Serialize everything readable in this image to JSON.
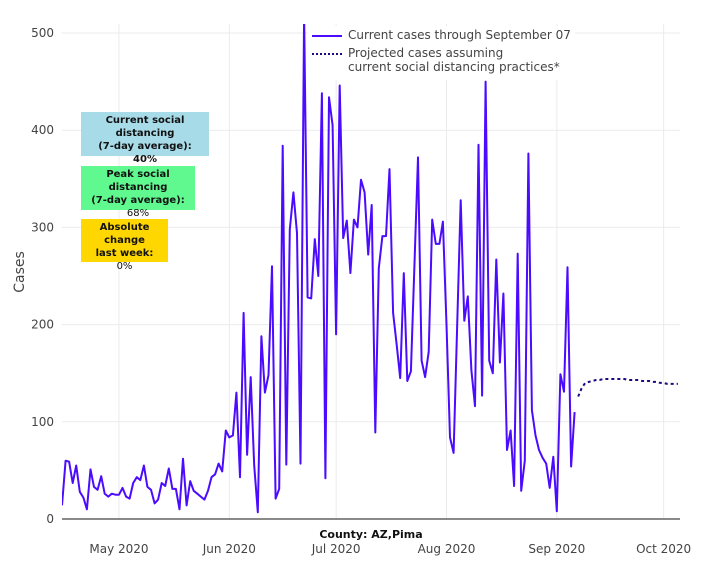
{
  "chart_data": {
    "type": "line",
    "title": "",
    "xlabel": "County: AZ,Pima",
    "ylabel": "Cases",
    "ylim": [
      0,
      505
    ],
    "xlim": [
      "2020-04-15",
      "2020-10-05"
    ],
    "yticks": [
      0,
      100,
      200,
      300,
      400,
      500
    ],
    "xticks": [
      {
        "date": "2020-05-01",
        "label": "May 2020"
      },
      {
        "date": "2020-06-01",
        "label": "Jun 2020"
      },
      {
        "date": "2020-07-01",
        "label": "Jul 2020"
      },
      {
        "date": "2020-08-01",
        "label": "Aug 2020"
      },
      {
        "date": "2020-09-01",
        "label": "Sep 2020"
      },
      {
        "date": "2020-10-01",
        "label": "Oct 2020"
      }
    ],
    "grid": true,
    "legend_position": "top-center",
    "series": [
      {
        "name": "Current cases through September 07",
        "style": "solid",
        "color": "#4b0bff",
        "start_date": "2020-04-15",
        "values": [
          14,
          60,
          59,
          37,
          55,
          28,
          22,
          10,
          51,
          33,
          30,
          44,
          26,
          23,
          26,
          25,
          25,
          32,
          23,
          21,
          37,
          43,
          40,
          55,
          33,
          30,
          16,
          20,
          37,
          34,
          52,
          31,
          31,
          10,
          62,
          14,
          39,
          29,
          26,
          23,
          20,
          29,
          43,
          46,
          57,
          49,
          91,
          84,
          86,
          130,
          43,
          212,
          66,
          146,
          55,
          7,
          188,
          130,
          148,
          260,
          21,
          31,
          384,
          56,
          298,
          336,
          294,
          57,
          520,
          228,
          227,
          288,
          250,
          438,
          42,
          434,
          405,
          190,
          446,
          289,
          307,
          253,
          308,
          300,
          349,
          336,
          272,
          323,
          89,
          258,
          291,
          291,
          360,
          212,
          180,
          145,
          253,
          142,
          152,
          260,
          372,
          163,
          146,
          172,
          308,
          283,
          283,
          306,
          200,
          84,
          68,
          200,
          328,
          204,
          229,
          153,
          116,
          385,
          127,
          450,
          163,
          150,
          267,
          161,
          232,
          71,
          91,
          34,
          273,
          29,
          60,
          376,
          112,
          86,
          71,
          63,
          57,
          32,
          64,
          8,
          149,
          131,
          259,
          54,
          110
        ]
      },
      {
        "name": "Projected cases assuming current social distancing practices*",
        "legend_lines": [
          "Projected cases assuming",
          "current social distancing practices*"
        ],
        "style": "dotted",
        "color": "#1a0a80",
        "start_date": "2020-09-07",
        "values": [
          126,
          135,
          140,
          141,
          142,
          143,
          143,
          144,
          144,
          144,
          144,
          144,
          144,
          144,
          143,
          143,
          143,
          143,
          142,
          142,
          142,
          141,
          141,
          140,
          140,
          139,
          139,
          139,
          139
        ]
      }
    ]
  },
  "annotations": [
    {
      "title_lines": [
        "Current social distancing",
        "(7-day average):"
      ],
      "value": "40%",
      "value_bold": true,
      "color": "#a8dbe8"
    },
    {
      "title_lines": [
        "Peak social distancing",
        "(7-day average):"
      ],
      "value": "68%",
      "value_bold": false,
      "color": "#5ff98f"
    },
    {
      "title_lines": [
        "Absolute change",
        "last week:"
      ],
      "value": "0%",
      "value_bold": false,
      "color": "#ffd700"
    }
  ]
}
